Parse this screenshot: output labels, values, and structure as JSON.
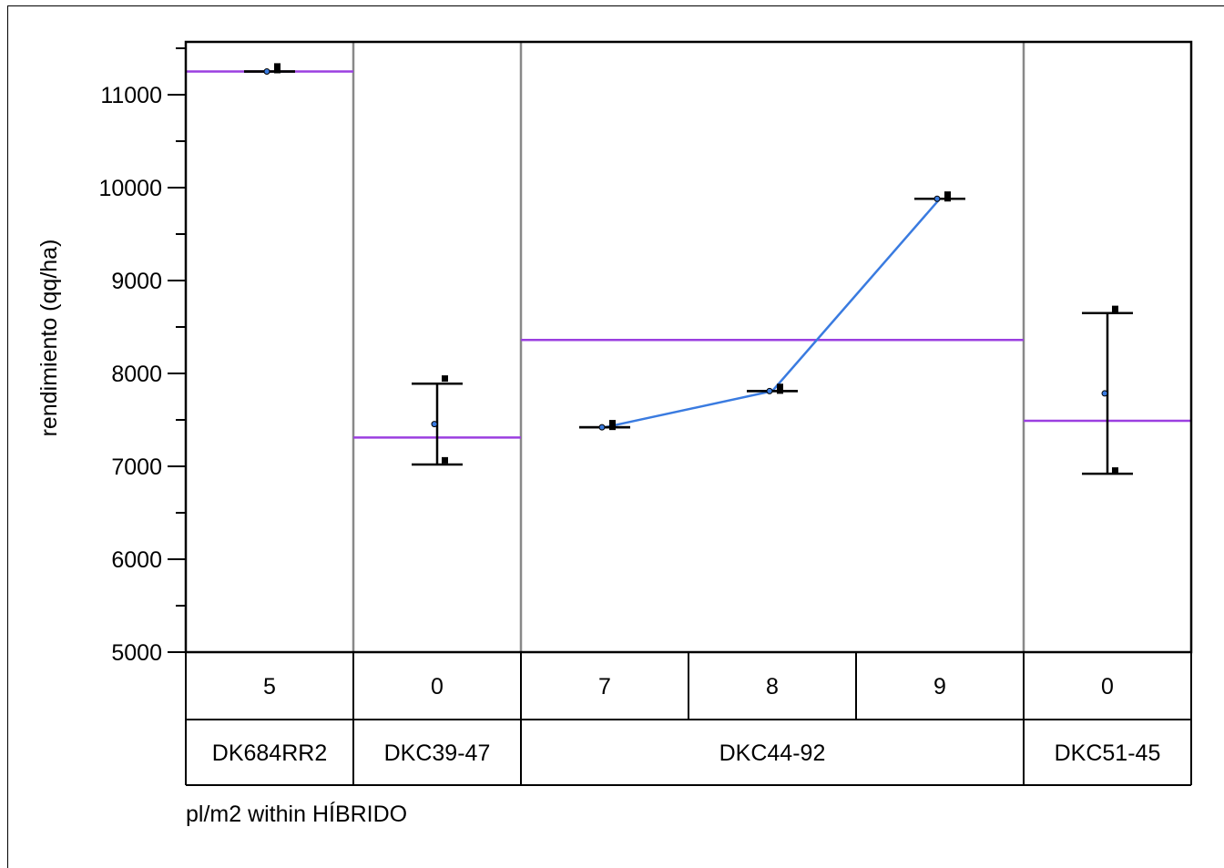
{
  "chart_data": {
    "type": "line",
    "ylabel": "rendimiento (qq/ha)",
    "xlabel": "pl/m2 within HÍBRIDO",
    "ylim": [
      5000,
      11500
    ],
    "y_ticks": [
      "5000",
      "6000",
      "7000",
      "8000",
      "9000",
      "10000",
      "11000"
    ],
    "hybrids": [
      {
        "name": "DK684RR2",
        "mean": 11250,
        "levels": [
          {
            "label": "5",
            "points": [
              11260,
              11300
            ],
            "low": 11250,
            "high": 11250
          }
        ]
      },
      {
        "name": "DKC39-47",
        "mean": 7310,
        "levels": [
          {
            "label": "0",
            "points": [
              7060,
              7940
            ],
            "low": 7020,
            "high": 7890
          }
        ]
      },
      {
        "name": "DKC44-92",
        "mean": 8360,
        "levels": [
          {
            "label": "7",
            "points": [
              7420,
              7460
            ],
            "low": 7420,
            "high": 7420
          },
          {
            "label": "8",
            "points": [
              7810,
              7850
            ],
            "low": 7810,
            "high": 7810
          },
          {
            "label": "9",
            "points": [
              9880,
              9920
            ],
            "low": 9880,
            "high": 9880
          }
        ]
      },
      {
        "name": "DKC51-45",
        "mean": 7490,
        "levels": [
          {
            "label": "0",
            "points": [
              6950,
              8690
            ],
            "low": 6920,
            "high": 8650
          }
        ]
      }
    ],
    "connect_line_hybrid": "DKC44-92",
    "connect_line_values": [
      7420,
      7810,
      9880
    ],
    "colors": {
      "mean_line": "#9b3fe0",
      "connect_line": "#3a7be0",
      "separator": "#888888"
    }
  }
}
